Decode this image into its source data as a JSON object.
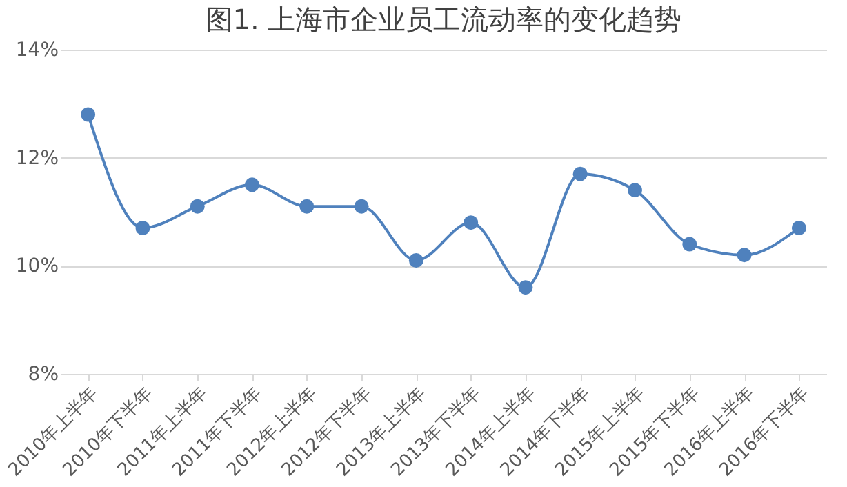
{
  "chart_data": {
    "type": "line",
    "title": "图1. 上海市企业员工流动率的变化趋势",
    "categories": [
      "2010年上半年",
      "2010年下半年",
      "2011年上半年",
      "2011年下半年",
      "2012年上半年",
      "2012年下半年",
      "2013年上半年",
      "2013年下半年",
      "2014年上半年",
      "2014年下半年",
      "2015年上半年",
      "2015年下半年",
      "2016年上半年",
      "2016年下半年"
    ],
    "series": [
      {
        "color": "#4f81bd",
        "values": [
          12.8,
          10.7,
          11.1,
          11.5,
          11.1,
          11.1,
          10.1,
          10.8,
          9.6,
          11.7,
          11.4,
          10.4,
          10.2,
          10.7
        ]
      }
    ],
    "ylim": [
      8,
      14
    ],
    "yticks": [
      {
        "value": 8,
        "label": "8%"
      },
      {
        "value": 10,
        "label": "10%"
      },
      {
        "value": 12,
        "label": "12%"
      },
      {
        "value": 14,
        "label": "14%"
      }
    ],
    "grid": "y",
    "marker": "circle",
    "line_style": "solid",
    "legend": false
  }
}
